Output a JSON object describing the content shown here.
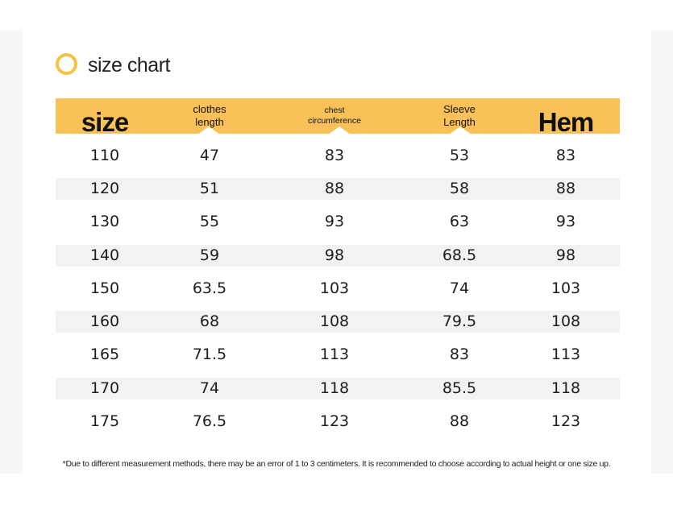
{
  "title": "size chart",
  "colors": {
    "accent": "#f5c242",
    "header_bg": "#fac158",
    "stripe": "#f2f2f2"
  },
  "header": [
    {
      "line1": "size",
      "line2": ""
    },
    {
      "line1": "clothes",
      "line2": "length"
    },
    {
      "line1": "chest",
      "line2": "circumference"
    },
    {
      "line1": "Sleeve",
      "line2": "Length"
    },
    {
      "line1": "Hem",
      "line2": ""
    }
  ],
  "rows": [
    [
      "110",
      "47",
      "83",
      "53",
      "83"
    ],
    [
      "120",
      "51",
      "88",
      "58",
      "88"
    ],
    [
      "130",
      "55",
      "93",
      "63",
      "93"
    ],
    [
      "140",
      "59",
      "98",
      "68.5",
      "98"
    ],
    [
      "150",
      "63.5",
      "103",
      "74",
      "103"
    ],
    [
      "160",
      "68",
      "108",
      "79.5",
      "108"
    ],
    [
      "165",
      "71.5",
      "113",
      "83",
      "113"
    ],
    [
      "170",
      "74",
      "118",
      "85.5",
      "118"
    ],
    [
      "175",
      "76.5",
      "123",
      "88",
      "123"
    ]
  ],
  "note": "*Due to different measurement methods, there may be an error of 1 to 3 centimeters. It is recommended to choose according to actual height or one size up."
}
